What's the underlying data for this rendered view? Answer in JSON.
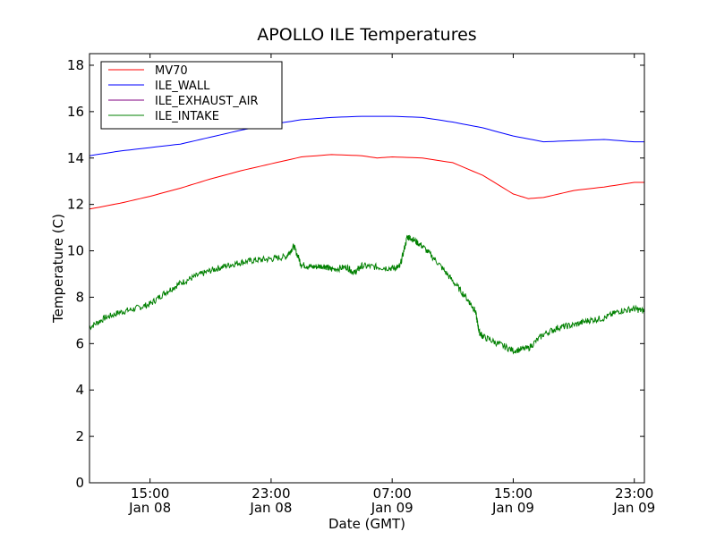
{
  "chart_data": {
    "type": "line",
    "title": "APOLLO ILE Temperatures",
    "xlabel": "Date (GMT)",
    "ylabel": "Temperature (C)",
    "x_unit": "hour",
    "xlim": [
      "2009-01-08 11:00",
      "2009-01-09 23:40"
    ],
    "ylim": [
      0,
      18.5
    ],
    "y_ticks": [
      0,
      2,
      4,
      6,
      8,
      10,
      12,
      14,
      16,
      18
    ],
    "x_ticks": [
      {
        "x": "2009-01-08 15:00",
        "time": "15:00",
        "date": "Jan 08"
      },
      {
        "x": "2009-01-08 23:00",
        "time": "23:00",
        "date": "Jan 08"
      },
      {
        "x": "2009-01-09 07:00",
        "time": "07:00",
        "date": "Jan 09"
      },
      {
        "x": "2009-01-09 15:00",
        "time": "15:00",
        "date": "Jan 09"
      },
      {
        "x": "2009-01-09 23:00",
        "time": "23:00",
        "date": "Jan 09"
      }
    ],
    "grid": false,
    "legend_position": "top-left",
    "series": [
      {
        "name": "MV70",
        "color": "#ff0000",
        "x": [
          "2009-01-08 11:00",
          "2009-01-08 13:00",
          "2009-01-08 15:00",
          "2009-01-08 17:00",
          "2009-01-08 19:00",
          "2009-01-08 21:00",
          "2009-01-08 23:00",
          "2009-01-09 01:00",
          "2009-01-09 03:00",
          "2009-01-09 05:00",
          "2009-01-09 06:00",
          "2009-01-09 07:00",
          "2009-01-09 09:00",
          "2009-01-09 11:00",
          "2009-01-09 13:00",
          "2009-01-09 15:00",
          "2009-01-09 16:00",
          "2009-01-09 17:00",
          "2009-01-09 19:00",
          "2009-01-09 21:00",
          "2009-01-09 23:00",
          "2009-01-09 23:40"
        ],
        "values": [
          11.8,
          12.05,
          12.35,
          12.7,
          13.1,
          13.45,
          13.75,
          14.05,
          14.15,
          14.1,
          14.0,
          14.05,
          14.0,
          13.8,
          13.25,
          12.45,
          12.25,
          12.3,
          12.6,
          12.75,
          12.95,
          12.95
        ]
      },
      {
        "name": "ILE_WALL",
        "color": "#0000ff",
        "x": [
          "2009-01-08 11:00",
          "2009-01-08 13:00",
          "2009-01-08 15:00",
          "2009-01-08 17:00",
          "2009-01-08 19:00",
          "2009-01-08 21:00",
          "2009-01-08 23:00",
          "2009-01-09 01:00",
          "2009-01-09 03:00",
          "2009-01-09 05:00",
          "2009-01-09 07:00",
          "2009-01-09 09:00",
          "2009-01-09 11:00",
          "2009-01-09 13:00",
          "2009-01-09 15:00",
          "2009-01-09 17:00",
          "2009-01-09 19:00",
          "2009-01-09 21:00",
          "2009-01-09 23:00",
          "2009-01-09 23:40"
        ],
        "values": [
          14.1,
          14.3,
          14.45,
          14.6,
          14.9,
          15.2,
          15.45,
          15.65,
          15.75,
          15.8,
          15.8,
          15.75,
          15.55,
          15.3,
          14.95,
          14.7,
          14.75,
          14.8,
          14.7,
          14.7
        ]
      },
      {
        "name": "ILE_EXHAUST_AIR",
        "color": "#800080",
        "x": [],
        "values": []
      },
      {
        "name": "ILE_INTAKE",
        "color": "#008000",
        "x": [
          "2009-01-08 11:00",
          "2009-01-08 12:00",
          "2009-01-08 13:00",
          "2009-01-08 14:00",
          "2009-01-08 15:00",
          "2009-01-08 16:00",
          "2009-01-08 17:00",
          "2009-01-08 18:00",
          "2009-01-08 19:00",
          "2009-01-08 20:00",
          "2009-01-08 21:00",
          "2009-01-08 22:00",
          "2009-01-08 23:00",
          "2009-01-09 00:00",
          "2009-01-09 00:30",
          "2009-01-09 01:00",
          "2009-01-09 01:45",
          "2009-01-09 02:30",
          "2009-01-09 03:00",
          "2009-01-09 04:00",
          "2009-01-09 04:30",
          "2009-01-09 05:00",
          "2009-01-09 06:00",
          "2009-01-09 07:00",
          "2009-01-09 07:30",
          "2009-01-09 08:00",
          "2009-01-09 08:15",
          "2009-01-09 09:00",
          "2009-01-09 10:00",
          "2009-01-09 11:00",
          "2009-01-09 12:00",
          "2009-01-09 12:30",
          "2009-01-09 12:45",
          "2009-01-09 13:00",
          "2009-01-09 14:00",
          "2009-01-09 15:00",
          "2009-01-09 16:00",
          "2009-01-09 17:00",
          "2009-01-09 18:00",
          "2009-01-09 19:00",
          "2009-01-09 20:00",
          "2009-01-09 21:00",
          "2009-01-09 22:00",
          "2009-01-09 23:00",
          "2009-01-09 23:40"
        ],
        "values": [
          6.7,
          7.1,
          7.35,
          7.5,
          7.7,
          8.2,
          8.6,
          8.9,
          9.15,
          9.35,
          9.5,
          9.6,
          9.65,
          9.75,
          10.2,
          9.4,
          9.3,
          9.35,
          9.2,
          9.3,
          9.05,
          9.35,
          9.3,
          9.25,
          9.3,
          10.6,
          10.55,
          10.2,
          9.5,
          8.7,
          7.9,
          7.4,
          6.5,
          6.3,
          6.0,
          5.7,
          5.8,
          6.4,
          6.7,
          6.8,
          7.0,
          7.1,
          7.4,
          7.5,
          7.4
        ]
      }
    ]
  }
}
